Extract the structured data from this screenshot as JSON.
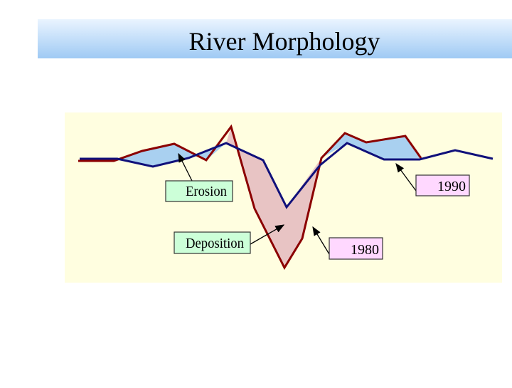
{
  "header": {
    "title": "River Morphology"
  },
  "labels": {
    "erosion": "Erosion",
    "deposition": "Deposition",
    "year_1980": "1980",
    "year_1990": "1990"
  }
}
